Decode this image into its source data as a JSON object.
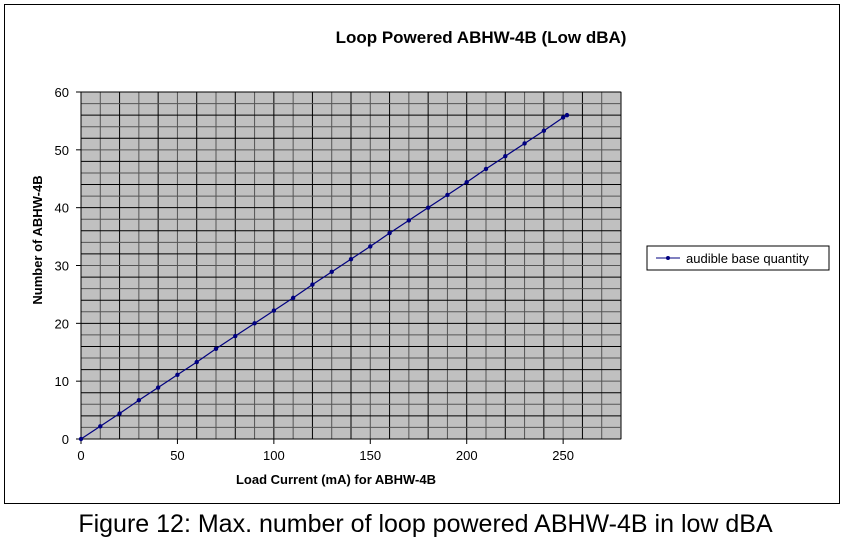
{
  "chart_data": {
    "type": "line",
    "title": "Loop Powered ABHW-4B (Low dBA)",
    "xlabel": "Load Current (mA) for ABHW-4B",
    "ylabel": "Number of ABHW-4B",
    "xlim": [
      0,
      280
    ],
    "ylim": [
      0,
      60
    ],
    "xticks": [
      0,
      50,
      100,
      150,
      200,
      250
    ],
    "yticks": [
      0,
      10,
      20,
      30,
      40,
      50,
      60
    ],
    "x_minor_grid_step": 10,
    "y_minor_grid_step": 2,
    "grid": true,
    "legend_position": "right",
    "plot_bg": "#c0c0c0",
    "series": [
      {
        "name": "audible base quantity",
        "color": "#000080",
        "x": [
          0,
          10,
          20,
          30,
          40,
          50,
          60,
          70,
          80,
          90,
          100,
          110,
          120,
          130,
          140,
          150,
          160,
          170,
          180,
          190,
          200,
          210,
          220,
          230,
          240,
          250,
          252
        ],
        "y": [
          0,
          2.2,
          4.4,
          6.7,
          8.9,
          11.1,
          13.3,
          15.6,
          17.8,
          20,
          22.2,
          24.4,
          26.7,
          28.9,
          31.1,
          33.3,
          35.6,
          37.8,
          40,
          42.2,
          44.4,
          46.7,
          48.9,
          51.1,
          53.3,
          55.6,
          56
        ]
      }
    ]
  },
  "caption": "Figure 12: Max. number of loop powered ABHW-4B in low dBA"
}
